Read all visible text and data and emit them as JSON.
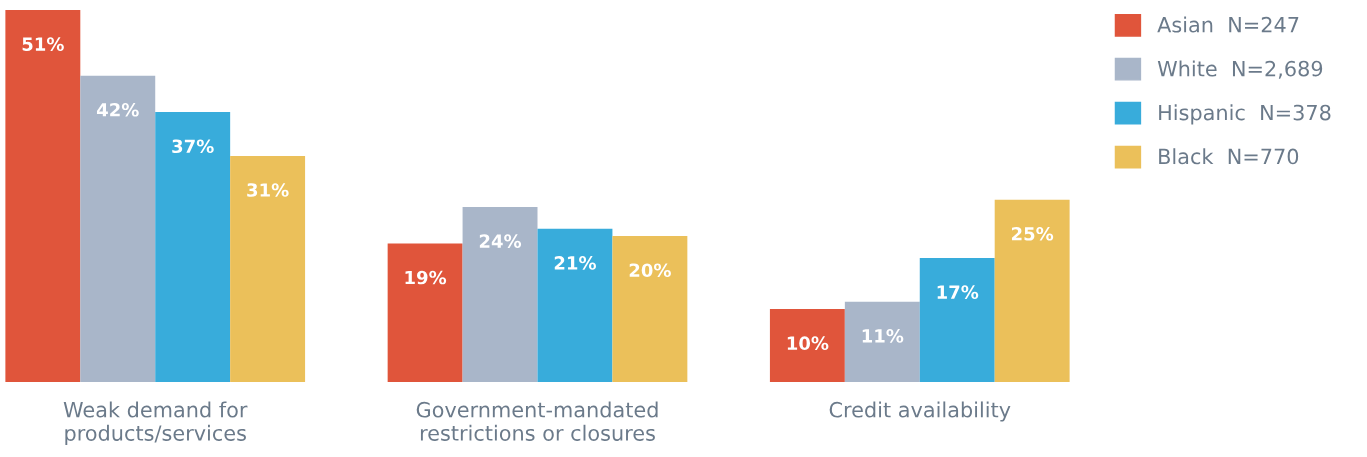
{
  "chart_data": {
    "type": "bar",
    "categories": [
      "Weak demand for\nproducts/services",
      "Government-mandated\nrestrictions or closures",
      "Credit availability"
    ],
    "tick_labels": "x",
    "grid": false,
    "legend": "top right",
    "series": [
      {
        "name": "Asian  N=247",
        "color": "#e0553b",
        "values": [
          51,
          19,
          10
        ],
        "value_labels": [
          "51%",
          "19%",
          "10%"
        ]
      },
      {
        "name": "White  N=2,689",
        "color": "#a9b6c9",
        "values": [
          42,
          24,
          11
        ],
        "value_labels": [
          "42%",
          "24%",
          "11%"
        ]
      },
      {
        "name": "Hispanic  N=378",
        "color": "#38acdb",
        "values": [
          37,
          21,
          17
        ],
        "value_labels": [
          "37%",
          "21%",
          "17%"
        ]
      },
      {
        "name": "Black  N=770",
        "color": "#ebc05a",
        "values": [
          31,
          20,
          25
        ],
        "value_labels": [
          "31%",
          "20%",
          "25%"
        ]
      }
    ]
  }
}
